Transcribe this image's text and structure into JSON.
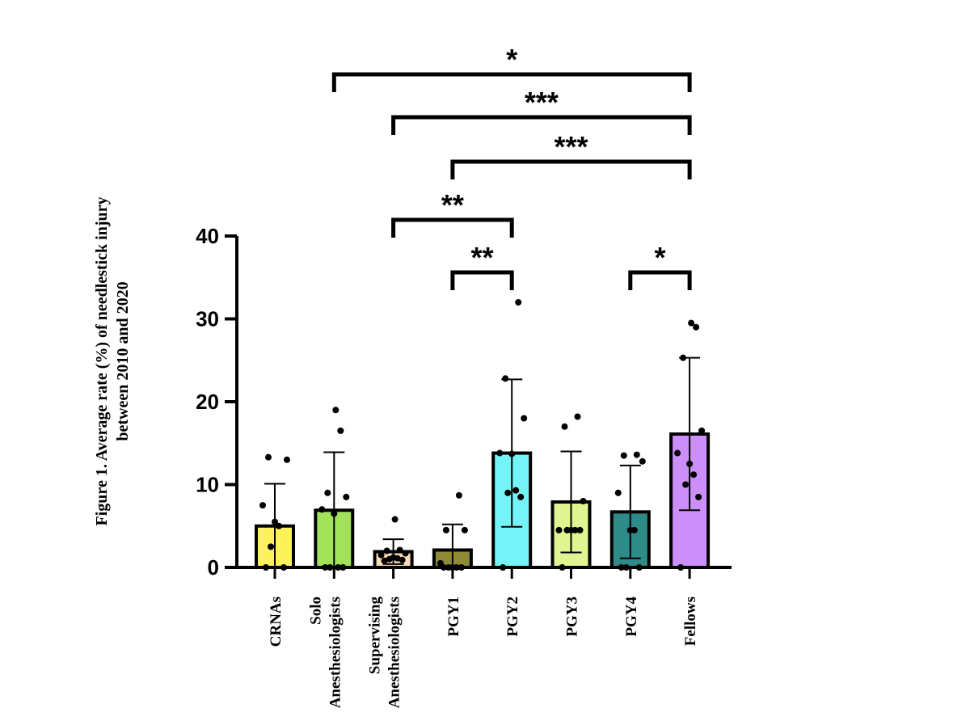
{
  "figure": {
    "caption_line1": "Figure 1. Average rate (%) of needlestick injury",
    "caption_line2": "between 2010 and 2020"
  },
  "chart_data": {
    "type": "bar",
    "title": "",
    "xlabel": "",
    "ylabel": "",
    "ylim": [
      0,
      40
    ],
    "yticks": [
      0,
      10,
      20,
      30,
      40
    ],
    "categories": [
      [
        "CRNAs"
      ],
      [
        "Solo",
        "Anesthesiologists"
      ],
      [
        "Supervising",
        "Anesthesiologists"
      ],
      [
        "PGY1"
      ],
      [
        "PGY2"
      ],
      [
        "PGY3"
      ],
      [
        "PGY4"
      ],
      [
        "Fellows"
      ]
    ],
    "bars": [
      {
        "mean": 5.0,
        "sd": 5.1,
        "color": "#fdf25b",
        "points": [
          0,
          0,
          2.5,
          5,
          5.5,
          7.5,
          13,
          13.3
        ]
      },
      {
        "mean": 6.9,
        "sd": 7.0,
        "color": "#a2e15a",
        "points": [
          0,
          0,
          0,
          0,
          6.5,
          7,
          8.5,
          9,
          16.5,
          19
        ]
      },
      {
        "mean": 1.9,
        "sd": 1.5,
        "color": "#f7deba",
        "points": [
          0.8,
          0.9,
          1.0,
          1.1,
          1.2,
          1.5,
          1.7,
          2.0,
          2.1,
          5.8
        ]
      },
      {
        "mean": 2.1,
        "sd": 3.1,
        "color": "#8f8a37",
        "points": [
          0,
          0,
          0,
          0,
          0,
          0.5,
          4.5,
          4.5,
          8.7
        ]
      },
      {
        "mean": 13.8,
        "sd": 8.9,
        "color": "#74f4f6",
        "points": [
          0,
          8.5,
          9.0,
          9.3,
          13.7,
          13.8,
          18.0,
          22.8,
          32.0
        ]
      },
      {
        "mean": 7.9,
        "sd": 6.1,
        "color": "#e0f491",
        "points": [
          0,
          4.5,
          4.5,
          4.5,
          4.5,
          4.5,
          8.0,
          17.0,
          18.2
        ]
      },
      {
        "mean": 6.7,
        "sd": 5.6,
        "color": "#2f8b88",
        "points": [
          0,
          0,
          0,
          4.5,
          4.5,
          9.0,
          12.8,
          13.5,
          13.6
        ]
      },
      {
        "mean": 16.1,
        "sd": 9.2,
        "color": "#cc8ef9",
        "points": [
          0,
          8.5,
          10.0,
          11.2,
          12.5,
          13.8,
          16.5,
          25.3,
          29.0,
          29.5
        ]
      }
    ],
    "significance": [
      {
        "from": 1,
        "to": 7,
        "label": "*"
      },
      {
        "from": 2,
        "to": 7,
        "label": "***"
      },
      {
        "from": 3,
        "to": 7,
        "label": "***"
      },
      {
        "from": 2,
        "to": 4,
        "label": "**"
      },
      {
        "from": 3,
        "to": 4,
        "label": "**"
      },
      {
        "from": 6,
        "to": 7,
        "label": "*"
      }
    ]
  }
}
